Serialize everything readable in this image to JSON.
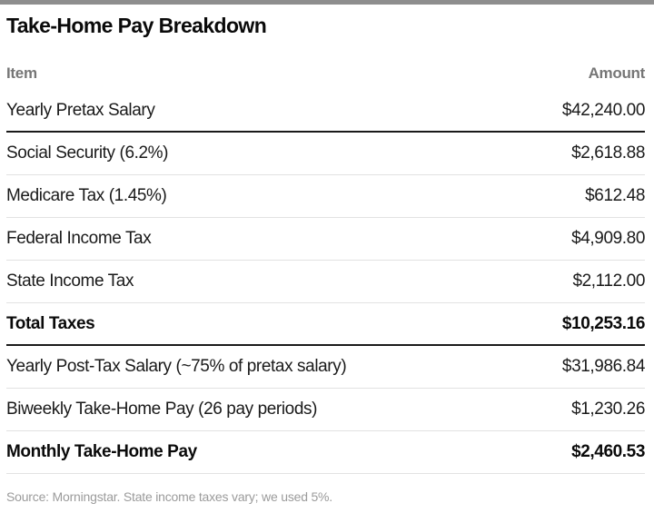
{
  "chart_data": {
    "type": "table",
    "title": "Take-Home Pay Breakdown",
    "columns": [
      "Item",
      "Amount"
    ],
    "rows": [
      {
        "item": "Yearly Pretax Salary",
        "amount": "$42,240.00",
        "bold": false
      },
      {
        "item": "Social Security (6.2%)",
        "amount": "$2,618.88",
        "bold": false
      },
      {
        "item": "Medicare Tax (1.45%)",
        "amount": "$612.48",
        "bold": false
      },
      {
        "item": "Federal Income Tax",
        "amount": "$4,909.80",
        "bold": false
      },
      {
        "item": "State Income Tax",
        "amount": "$2,112.00",
        "bold": false
      },
      {
        "item": "Total Taxes",
        "amount": "$10,253.16",
        "bold": true
      },
      {
        "item": "Yearly Post-Tax Salary (~75% of pretax salary)",
        "amount": "$31,986.84",
        "bold": false
      },
      {
        "item": "Biweekly Take-Home Pay (26 pay periods)",
        "amount": "$1,230.26",
        "bold": false
      },
      {
        "item": "Monthly Take-Home Pay",
        "amount": "$2,460.53",
        "bold": true
      }
    ],
    "source_note": "Source: Morningstar. State income taxes vary; we used 5%."
  },
  "colors": {
    "top_bar": "#8e8e8e",
    "header_text": "#767676",
    "row_text": "#1a1a1a",
    "thick_rule": "#1a1a1a",
    "thin_rule": "#e2e2e2",
    "source_text": "#9b9b9b",
    "background": "#ffffff"
  }
}
